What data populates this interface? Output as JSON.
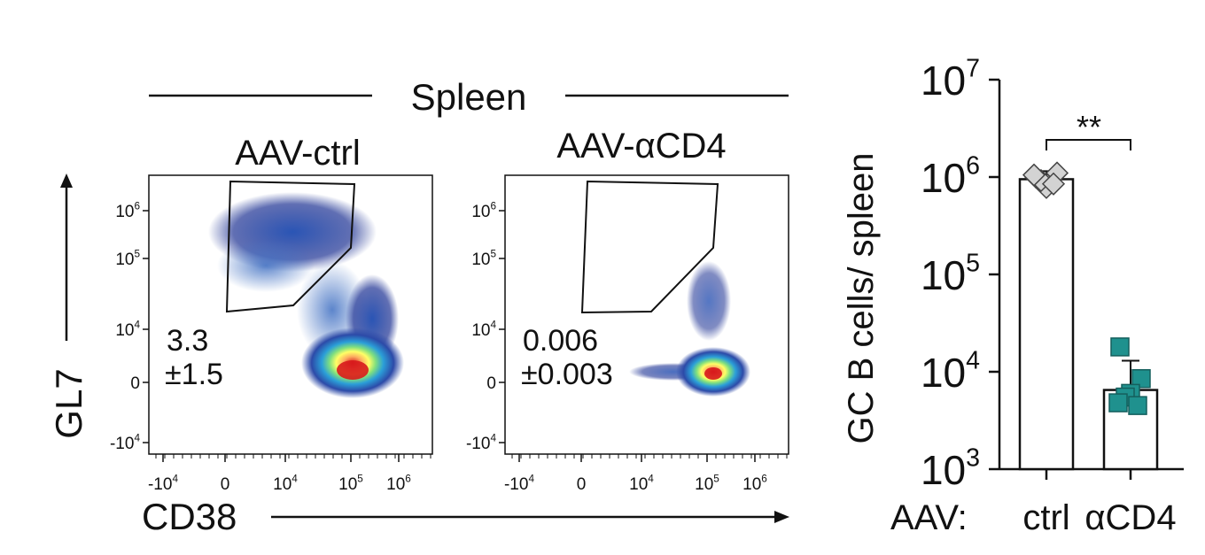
{
  "header": {
    "organ": "Spleen"
  },
  "flow": {
    "x_axis_label": "CD38",
    "y_axis_label": "GL7",
    "x_ticks": [
      {
        "base": "-10",
        "exp": "4"
      },
      {
        "base": "0",
        "exp": ""
      },
      {
        "base": "10",
        "exp": "4"
      },
      {
        "base": "10",
        "exp": "5"
      },
      {
        "base": "10",
        "exp": "6"
      }
    ],
    "y_ticks": [
      {
        "base": "10",
        "exp": "6"
      },
      {
        "base": "10",
        "exp": "5"
      },
      {
        "base": "10",
        "exp": "4"
      },
      {
        "base": "0",
        "exp": ""
      },
      {
        "base": "-10",
        "exp": "4"
      }
    ],
    "panels": [
      {
        "title": "AAV-ctrl",
        "gate_percent": "3.3",
        "gate_sd": "±1.5"
      },
      {
        "title": "AAV-αCD4",
        "gate_percent": "0.006",
        "gate_sd": "±0.003"
      }
    ]
  },
  "chart_data": {
    "type": "bar",
    "ylabel": "GC B cells/ spleen",
    "xlabel": "AAV:",
    "yscale": "log",
    "ylim": [
      1000,
      10000000
    ],
    "y_ticks": [
      {
        "base": "10",
        "exp": "3"
      },
      {
        "base": "10",
        "exp": "4"
      },
      {
        "base": "10",
        "exp": "5"
      },
      {
        "base": "10",
        "exp": "6"
      },
      {
        "base": "10",
        "exp": "7"
      }
    ],
    "categories": [
      "ctrl",
      "αCD4"
    ],
    "values": [
      950000,
      6500
    ],
    "error_upper": [
      1150000,
      13000
    ],
    "error_lower": [
      800000,
      4500
    ],
    "points": [
      [
        1000000,
        1100000,
        780000,
        920000,
        850000,
        1050000
      ],
      [
        18000,
        8500,
        6000,
        5500,
        4500,
        4800
      ]
    ],
    "significance": "**",
    "colors": {
      "ctrl_points": "#d3d3d3",
      "aCD4_points": "#1f918e",
      "bar_fill": "#ffffff"
    }
  }
}
